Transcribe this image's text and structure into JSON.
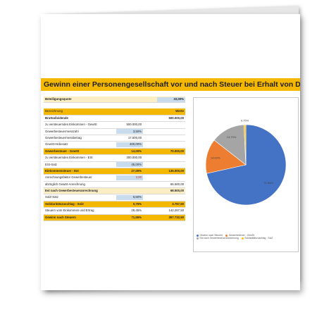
{
  "title": "Gewinn einer Personengesellschaft vor und nach Steuer bei Erhalt von Dividenden",
  "beteiligung": {
    "label": "Beteiligungsquote",
    "value": "33,00%"
  },
  "table_header": {
    "label": "Bezeichnung",
    "value": "Werte"
  },
  "rows": [
    {
      "label": "Bruttodividende",
      "v1": "",
      "v2": "500.000,00"
    },
    {
      "label": "zu versteuerndes Einkommen - GewSt",
      "v1": "500.000,00",
      "v2": ""
    },
    {
      "label": "Gewerbesteuermesszahl",
      "v1": "3,50%",
      "v2": ""
    },
    {
      "label": "Gewerbesteuermessbetrag",
      "v1": "17.500,00",
      "v2": ""
    },
    {
      "label": "GewSt-Hebesatz",
      "v1": "400,00%",
      "v2": ""
    },
    {
      "label": "Gewerbesteuer - GewSt",
      "v1": "14,00%",
      "v2": "70.000,00"
    },
    {
      "label": "zu versteuerndes Einkommen - ESt",
      "v1": "300.000,00",
      "v2": ""
    },
    {
      "label": "ESt-Satz",
      "v1": "45,00%",
      "v2": ""
    },
    {
      "label": "Einkommensteuer - Est",
      "v1": "27,00%",
      "v2": "135.000,00"
    },
    {
      "label": "Anrechnungsfaktor Gewerbesteuer",
      "v1": "3,80",
      "v2": ""
    },
    {
      "label": "abzüglich GewSt-Anrechnung",
      "v1": "",
      "v2": "66.500,00"
    },
    {
      "label": "Est nach Gewerbesteueranrechnung",
      "v1": "",
      "v2": "68.500,00"
    },
    {
      "label": "SolZ-Satz",
      "v1": "5,50%",
      "v2": ""
    },
    {
      "label": "Solidaritätszuschlag - SolZ",
      "v1": "0,75%",
      "v2": "3.767,50"
    },
    {
      "label": "Steuern vom Einkommen und Ertrag",
      "v1": "28,45%",
      "v2": "142.267,50"
    },
    {
      "label": "Gewinn nach Steuern",
      "v1": "71,55%",
      "v2": "357.732,50"
    }
  ],
  "chart_data": {
    "type": "pie",
    "labels": [
      "Gewinn nach Steuern",
      "Gewerbesteuer - GewSt",
      "Est nach Gewerbesteueranrechnung",
      "Solidaritätszuschlag - SolZ"
    ],
    "values": [
      71.55,
      14.0,
      13.7,
      0.75
    ],
    "value_labels": [
      "71,55%",
      "14,00%",
      "13,70%",
      "0,75%"
    ],
    "colors": [
      "#4472c4",
      "#ed7d31",
      "#a5a5a5",
      "#ffc000"
    ],
    "legend_position": "bottom"
  }
}
